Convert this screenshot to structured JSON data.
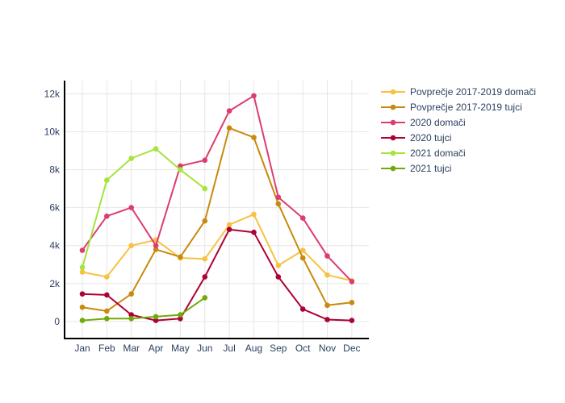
{
  "chart_data": {
    "type": "line",
    "categories": [
      "Jan",
      "Feb",
      "Mar",
      "Apr",
      "May",
      "Jun",
      "Jul",
      "Aug",
      "Sep",
      "Oct",
      "Nov",
      "Dec"
    ],
    "y_ticks": [
      0,
      2000,
      4000,
      6000,
      8000,
      10000,
      12000
    ],
    "y_tick_labels": [
      "0",
      "2k",
      "4k",
      "6k",
      "8k",
      "10k",
      "12k"
    ],
    "ylim": [
      -900,
      12700
    ],
    "grid": true,
    "legend_position": "top-right",
    "series": [
      {
        "name": "Povprečje 2017-2019 domači",
        "color": "#f7c242",
        "values": [
          2600,
          2350,
          4000,
          4300,
          3350,
          3300,
          5100,
          5650,
          2950,
          3750,
          2450,
          2150
        ]
      },
      {
        "name": "Povprečje 2017-2019 tujci",
        "color": "#c88a0d",
        "values": [
          750,
          550,
          1450,
          3800,
          3400,
          5300,
          10200,
          9700,
          6200,
          3350,
          850,
          1000
        ]
      },
      {
        "name": "2020 domači",
        "color": "#dc3d6e",
        "values": [
          3750,
          5550,
          6000,
          4000,
          8200,
          8500,
          11100,
          11900,
          6550,
          5450,
          3450,
          2100
        ]
      },
      {
        "name": "2020 tujci",
        "color": "#ad0234",
        "values": [
          1450,
          1400,
          350,
          50,
          150,
          2350,
          4850,
          4700,
          2350,
          650,
          100,
          50
        ]
      },
      {
        "name": "2021 domači",
        "color": "#a6e33b",
        "values": [
          2850,
          7450,
          8600,
          9100,
          8000,
          7000,
          null,
          null,
          null,
          null,
          null,
          null
        ]
      },
      {
        "name": "2021 tujci",
        "color": "#71a90b",
        "values": [
          50,
          150,
          150,
          250,
          350,
          1250,
          null,
          null,
          null,
          null,
          null,
          null
        ]
      }
    ]
  }
}
